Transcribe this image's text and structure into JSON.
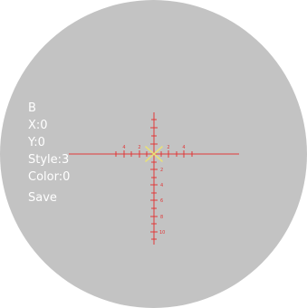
{
  "menu": {
    "title": "B",
    "x_readout": "X:0",
    "y_readout": "Y:0",
    "style_readout": "Style:3",
    "color_readout": "Color:0",
    "save_label": "Save"
  },
  "reticle": {
    "style": 3,
    "color_index": 0,
    "line_color": "#e03838",
    "center_mark_color": "#e8e07a",
    "horizontal_labels": [
      "4",
      "2",
      "2",
      "4"
    ],
    "vertical_labels": [
      "2",
      "4",
      "6",
      "8",
      "10"
    ]
  },
  "colors": {
    "scope_background": "#c3c3c3",
    "menu_text": "#ffffff"
  }
}
